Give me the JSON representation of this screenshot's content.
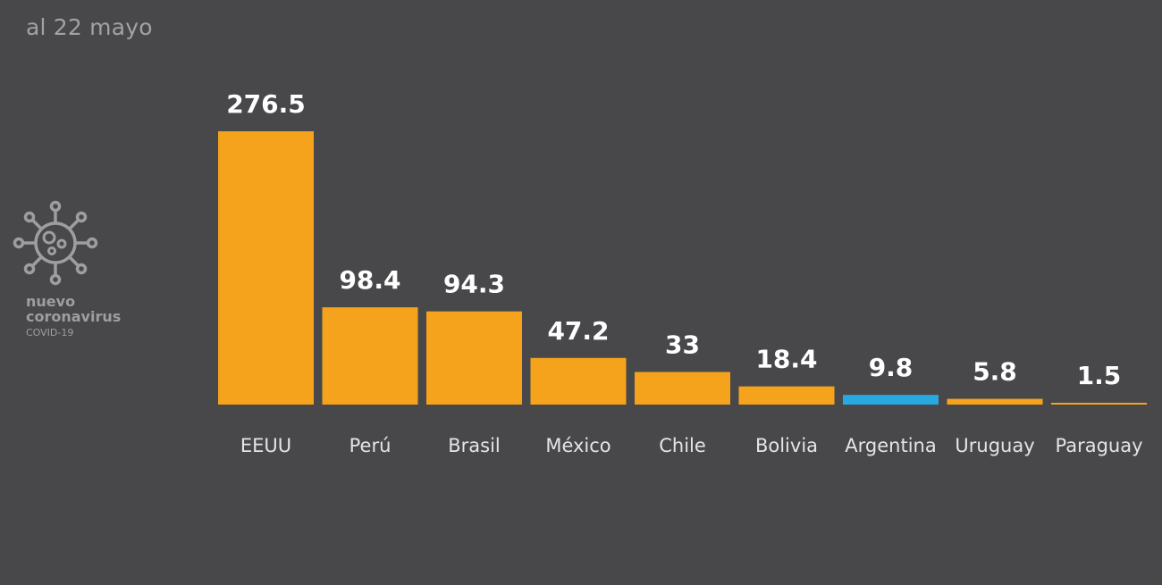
{
  "header": {
    "date_label": "al 22 mayo"
  },
  "logo": {
    "icon": "coronavirus-icon",
    "line1": "nuevo",
    "line2": "coronavirus",
    "line3": "COVID-19",
    "color": "#9e9ea1"
  },
  "colors": {
    "background": "#48484b",
    "bar_default": "#f5a31c",
    "bar_highlight": "#29a9e2",
    "value_label": "#ffffff",
    "category_label": "#e4e4e4"
  },
  "chart_data": {
    "type": "bar",
    "title": "",
    "xlabel": "",
    "ylabel": "",
    "categories": [
      "EEUU",
      "Perú",
      "Brasil",
      "México",
      "Chile",
      "Bolivia",
      "Argentina",
      "Uruguay",
      "Paraguay"
    ],
    "values": [
      276.5,
      98.4,
      94.3,
      47.2,
      33,
      18.4,
      9.8,
      5.8,
      1.5
    ],
    "value_labels": [
      "276.5",
      "98.4",
      "94.3",
      "47.2",
      "33",
      "18.4",
      "9.8",
      "5.8",
      "1.5"
    ],
    "highlight": "Argentina",
    "ylim": [
      0,
      276.5
    ],
    "grid": false,
    "legend": "none"
  }
}
